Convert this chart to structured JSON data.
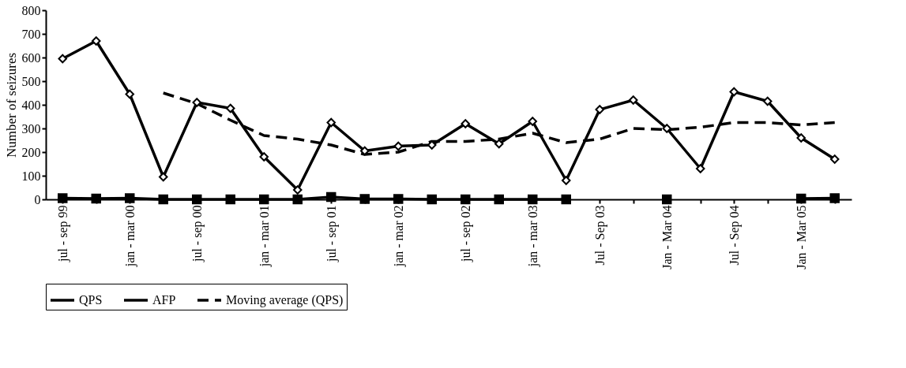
{
  "chart_data": {
    "type": "line",
    "ylabel": "Number of seizures",
    "categories": [
      "jul - sep 99",
      null,
      "jan - mar 00",
      null,
      "jul - sep 00",
      null,
      "jan - mar 01",
      null,
      "jul - sep 01",
      null,
      "jan - mar 02",
      null,
      "jul - sep 02",
      null,
      "jan - mar 03",
      null,
      "Jul - Sep 03",
      null,
      "Jan - Mar 04",
      null,
      "Jul - Sep 04",
      null,
      "Jan - Mar 05",
      null
    ],
    "series": [
      {
        "name": "QPS",
        "color": "#000000",
        "marker": "diamond",
        "line_style": "solid",
        "values": [
          595,
          670,
          445,
          95,
          410,
          385,
          180,
          40,
          325,
          205,
          225,
          230,
          320,
          235,
          330,
          80,
          380,
          420,
          300,
          130,
          455,
          415,
          260,
          170
        ]
      },
      {
        "name": "AFP",
        "color": "#000000",
        "marker": "square",
        "line_style": "solid",
        "values": [
          5,
          3,
          5,
          0,
          0,
          0,
          0,
          0,
          10,
          2,
          2,
          0,
          0,
          0,
          0,
          0,
          null,
          null,
          0,
          null,
          null,
          null,
          3,
          5
        ]
      },
      {
        "name": "Moving average (QPS)",
        "color": "#000000",
        "marker": "none",
        "line_style": "dashed",
        "values": [
          null,
          null,
          null,
          450,
          405,
          335,
          270,
          255,
          230,
          190,
          200,
          245,
          245,
          255,
          280,
          240,
          255,
          300,
          295,
          305,
          325,
          325,
          315,
          325
        ]
      }
    ],
    "ylim": [
      0,
      800
    ],
    "yticks": [
      0,
      100,
      200,
      300,
      400,
      500,
      600,
      700,
      800
    ],
    "grid": false,
    "legend": "bottom"
  }
}
